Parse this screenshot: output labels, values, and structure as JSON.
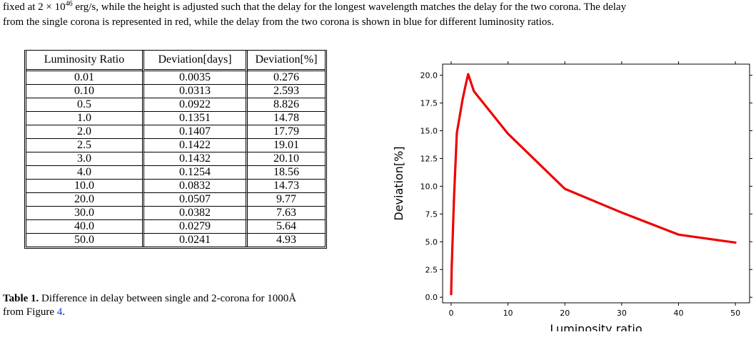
{
  "caption_top": {
    "line1_pre": "fixed at 2 × 10",
    "line1_sup": "46",
    "line1_post": " erg/s, while the height is adjusted such that the delay for the longest wavelength matches the delay for the two corona. The delay",
    "line2": "from the single corona is represented in red, while the delay from the two corona is shown in blue for different luminosity ratios."
  },
  "table": {
    "headers": [
      "Luminosity Ratio",
      "Deviation[days]",
      "Deviation[%]"
    ],
    "rows": [
      [
        "0.01",
        "0.0035",
        "0.276"
      ],
      [
        "0.10",
        "0.0313",
        "2.593"
      ],
      [
        "0.5",
        "0.0922",
        "8.826"
      ],
      [
        "1.0",
        "0.1351",
        "14.78"
      ],
      [
        "2.0",
        "0.1407",
        "17.79"
      ],
      [
        "2.5",
        "0.1422",
        "19.01"
      ],
      [
        "3.0",
        "0.1432",
        "20.10"
      ],
      [
        "4.0",
        "0.1254",
        "18.56"
      ],
      [
        "10.0",
        "0.0832",
        "14.73"
      ],
      [
        "20.0",
        "0.0507",
        "9.77"
      ],
      [
        "30.0",
        "0.0382",
        "7.63"
      ],
      [
        "40.0",
        "0.0279",
        "5.64"
      ],
      [
        "50.0",
        "0.0241",
        "4.93"
      ]
    ]
  },
  "table_caption": {
    "label": "Table 1.",
    "text": " Difference in delay between single and 2-corona for 1000Å",
    "text2_pre": "from Figure ",
    "fig_ref": "4",
    "text2_post": "."
  },
  "chart_data": {
    "type": "line",
    "xlabel": "Luminosity ratio",
    "ylabel": "Deviation[%]",
    "xlim": [
      -1.5,
      52.5
    ],
    "ylim": [
      -0.5,
      21.0
    ],
    "xticks": [
      0,
      10,
      20,
      30,
      40,
      50
    ],
    "yticks": [
      0.0,
      2.5,
      5.0,
      7.5,
      10.0,
      12.5,
      15.0,
      17.5,
      20.0
    ],
    "ytick_labels": [
      "0.0",
      "2.5",
      "5.0",
      "7.5",
      "10.0",
      "12.5",
      "15.0",
      "17.5",
      "20.0"
    ],
    "color": "#ee0000",
    "series": [
      {
        "x": [
          0.01,
          0.1,
          0.5,
          1.0,
          2.0,
          2.5,
          3.0,
          4.0,
          10.0,
          20.0,
          30.0,
          40.0,
          50.0
        ],
        "y": [
          0.276,
          2.593,
          8.826,
          14.78,
          17.79,
          19.01,
          20.1,
          18.56,
          14.73,
          9.77,
          7.63,
          5.64,
          4.93
        ]
      }
    ],
    "grid": false
  }
}
